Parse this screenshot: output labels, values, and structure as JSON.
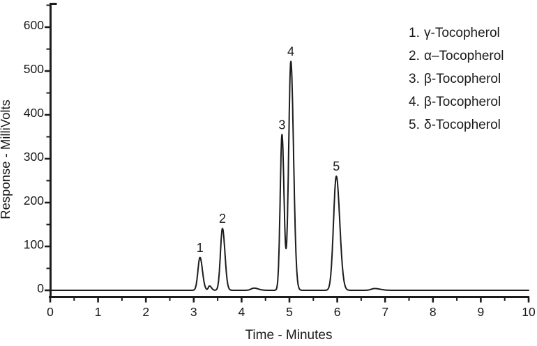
{
  "figure": {
    "background": "#ffffff",
    "line_color": "#1c1c1c",
    "text_color": "#1a1a1a"
  },
  "chart_data": {
    "type": "line",
    "kind": "chromatogram",
    "title": "",
    "xlabel": "Time - Minutes",
    "ylabel": "Response - MilliVolts",
    "xlim": [
      0,
      10
    ],
    "ylim": [
      0,
      650
    ],
    "x_major_ticks": [
      0,
      1,
      2,
      3,
      4,
      5,
      6,
      7,
      8,
      9,
      10
    ],
    "x_minor_step": 0.5,
    "y_major_ticks": [
      0,
      100,
      200,
      300,
      400,
      500,
      600
    ],
    "y_minor_step": 50,
    "grid": false,
    "legend_position": "top-right",
    "baseline_mV": 0,
    "peaks": [
      {
        "label": "1",
        "compound": "γ-Tocopherol",
        "time_min": 3.13,
        "height_mV": 75,
        "sigma_left": 0.042,
        "sigma_right": 0.052
      },
      {
        "label": "2",
        "compound": "α–Tocopherol",
        "time_min": 3.6,
        "height_mV": 141,
        "sigma_left": 0.042,
        "sigma_right": 0.052
      },
      {
        "label": "3",
        "compound": "β-Tocopherol",
        "time_min": 4.845,
        "height_mV": 355,
        "sigma_left": 0.038,
        "sigma_right": 0.042
      },
      {
        "label": "4",
        "compound": "β-Tocopherol",
        "time_min": 5.03,
        "height_mV": 522,
        "sigma_left": 0.046,
        "sigma_right": 0.056
      },
      {
        "label": "5",
        "compound": "δ-Tocopherol",
        "time_min": 5.98,
        "height_mV": 260,
        "sigma_left": 0.058,
        "sigma_right": 0.072
      }
    ],
    "minor_features": [
      {
        "time_min": 3.33,
        "height_mV": 10,
        "sigma_left": 0.025,
        "sigma_right": 0.04
      },
      {
        "time_min": 4.26,
        "height_mV": 5,
        "sigma_left": 0.06,
        "sigma_right": 0.09
      },
      {
        "time_min": 6.78,
        "height_mV": 4,
        "sigma_left": 0.07,
        "sigma_right": 0.12
      }
    ],
    "legend": {
      "items": [
        {
          "number": "1.",
          "compound": "γ-Tocopherol"
        },
        {
          "number": "2.",
          "compound": "α–Tocopherol"
        },
        {
          "number": "3.",
          "compound": "β-Tocopherol"
        },
        {
          "number": "4.",
          "compound": "β-Tocopherol"
        },
        {
          "number": "5.",
          "compound": "δ-Tocopherol"
        }
      ]
    }
  }
}
